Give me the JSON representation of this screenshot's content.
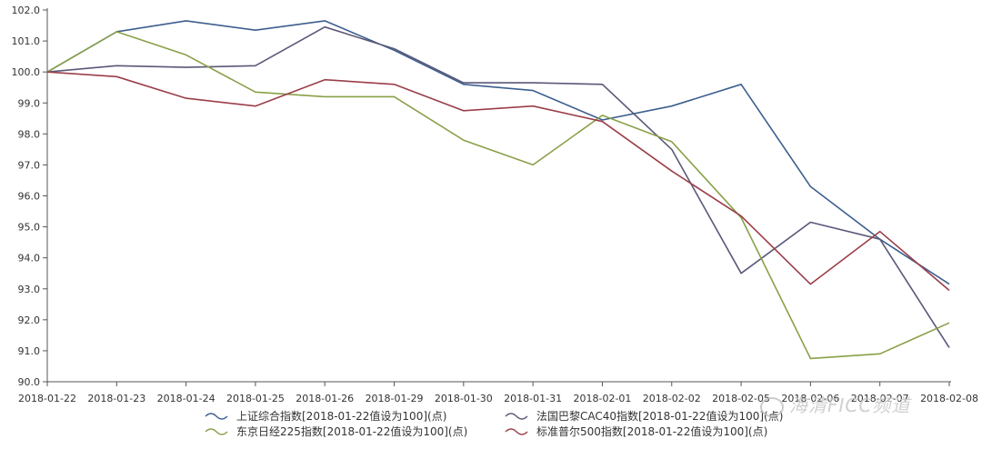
{
  "chart_data": {
    "type": "line",
    "title": "",
    "xlabel": "",
    "ylabel": "",
    "x": [
      "2018-01-22",
      "2018-01-23",
      "2018-01-24",
      "2018-01-25",
      "2018-01-26",
      "2018-01-29",
      "2018-01-30",
      "2018-01-31",
      "2018-02-01",
      "2018-02-02",
      "2018-02-05",
      "2018-02-06",
      "2018-02-07",
      "2018-02-08"
    ],
    "ylim": [
      90.0,
      102.0
    ],
    "yticks": [
      "90.0",
      "91.0",
      "92.0",
      "93.0",
      "94.0",
      "95.0",
      "96.0",
      "97.0",
      "98.0",
      "99.0",
      "100.0",
      "101.0",
      "102.0"
    ],
    "grid": false,
    "legend_position": "bottom",
    "series": [
      {
        "name": "上证综合指数[2018-01-22值设为100](点)",
        "color": "#3d5f8f",
        "values": [
          100.0,
          101.3,
          101.65,
          101.35,
          101.65,
          100.7,
          99.6,
          99.4,
          98.45,
          98.9,
          99.6,
          96.3,
          94.6,
          93.15
        ]
      },
      {
        "name": "法国巴黎CAC40指数[2018-01-22值设为100](点)",
        "color": "#5a5878",
        "values": [
          100.0,
          100.2,
          100.15,
          100.2,
          101.45,
          100.75,
          99.65,
          99.65,
          99.6,
          97.5,
          93.5,
          95.15,
          94.6,
          91.1
        ]
      },
      {
        "name": "东京日经225指数[2018-01-22值设为100](点)",
        "color": "#89a049",
        "values": [
          100.0,
          101.3,
          100.55,
          99.35,
          99.2,
          99.2,
          97.8,
          97.0,
          98.6,
          97.75,
          95.3,
          90.75,
          90.9,
          91.9
        ]
      },
      {
        "name": "标准普尔500指数[2018-01-22值设为100](点)",
        "color": "#9b3e4a",
        "values": [
          100.0,
          99.85,
          99.15,
          98.9,
          99.75,
          99.6,
          98.75,
          98.9,
          98.4,
          96.8,
          95.35,
          93.15,
          94.85,
          92.95
        ]
      }
    ]
  },
  "watermark": {
    "text": "海清FICC频道",
    "icon": "wechat-icon"
  }
}
